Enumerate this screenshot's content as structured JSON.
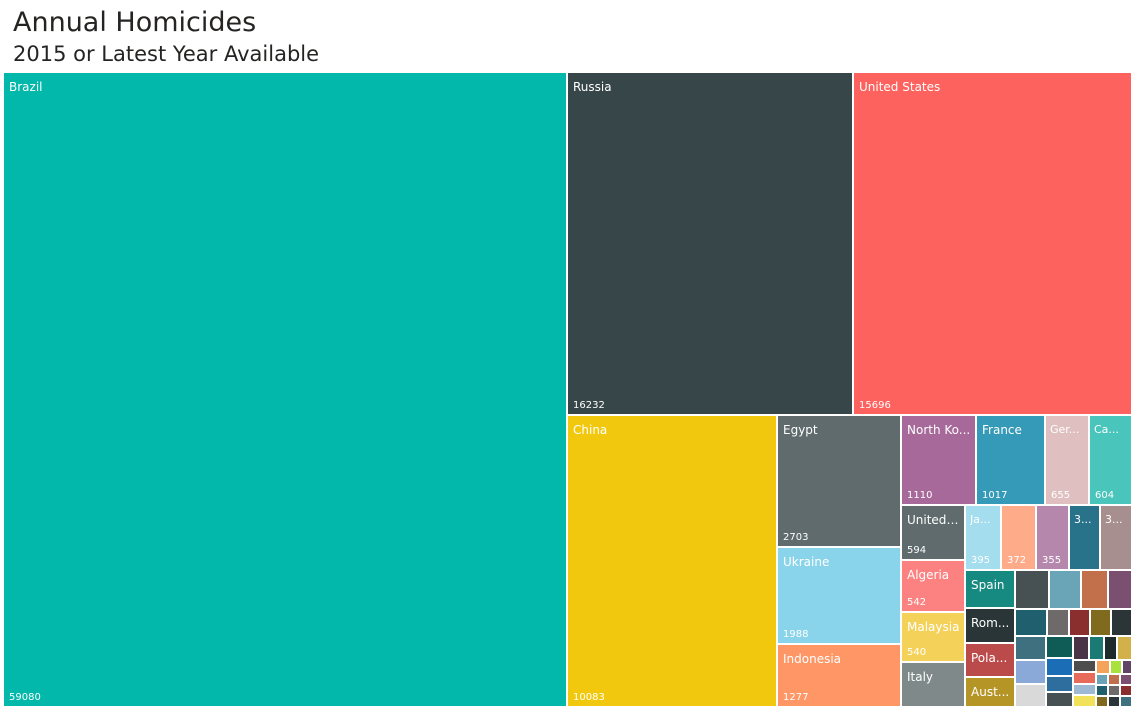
{
  "header": {
    "title": "Annual Homicides",
    "subtitle": "2015 or Latest Year Available"
  },
  "chart_data": {
    "type": "treemap",
    "items": [
      {
        "name": "Brazil",
        "label": "Brazil",
        "value": 59080,
        "color": "#01B8AA"
      },
      {
        "name": "Russia",
        "label": "Russia",
        "value": 16232,
        "color": "#374649"
      },
      {
        "name": "United States",
        "label": "United States",
        "value": 15696,
        "color": "#FD625E"
      },
      {
        "name": "China",
        "label": "China",
        "value": 10083,
        "color": "#F2C80F"
      },
      {
        "name": "Egypt",
        "label": "Egypt",
        "value": 2703,
        "color": "#5F6B6D"
      },
      {
        "name": "Ukraine",
        "label": "Ukraine",
        "value": 1988,
        "color": "#8AD4EB"
      },
      {
        "name": "Indonesia",
        "label": "Indonesia",
        "value": 1277,
        "color": "#FE9666"
      },
      {
        "name": "North Korea",
        "label": "North Ko...",
        "value": 1110,
        "color": "#A66999"
      },
      {
        "name": "France",
        "label": "France",
        "value": 1017,
        "color": "#3599B8"
      },
      {
        "name": "Germany",
        "label": "Ger...",
        "value": 655,
        "color": "#DFBFBF"
      },
      {
        "name": "Canada",
        "label": "Ca...",
        "value": 604,
        "color": "#4AC5BB"
      },
      {
        "name": "United Kingdom",
        "label": "United ...",
        "value": 594,
        "color": "#5F6B6D"
      },
      {
        "name": "Algeria",
        "label": "Algeria",
        "value": 542,
        "color": "#FB8281"
      },
      {
        "name": "Malaysia",
        "label": "Malaysia",
        "value": 540,
        "color": "#F4D25A"
      },
      {
        "name": "Italy",
        "label": "Italy",
        "value": null,
        "color": "#7F898A"
      },
      {
        "name": "Japan",
        "label": "Ja...",
        "value": 395,
        "color": "#A4DDEE"
      },
      {
        "name": "",
        "label": "",
        "value": 372,
        "color": "#FDAB89"
      },
      {
        "name": "",
        "label": "",
        "value": 355,
        "color": "#B687AC"
      },
      {
        "name": "",
        "label": "3...",
        "value": null,
        "color": "#28738A"
      },
      {
        "name": "",
        "label": "3...",
        "value": null,
        "color": "#A78F8F"
      },
      {
        "name": "Spain",
        "label": "Spain",
        "value": null,
        "color": "#168980"
      },
      {
        "name": "Romania",
        "label": "Rom...",
        "value": null,
        "color": "#293537"
      },
      {
        "name": "Poland",
        "label": "Pola...",
        "value": null,
        "color": "#BB4A4A"
      },
      {
        "name": "Australia",
        "label": "Aust...",
        "value": null,
        "color": "#B59525"
      }
    ],
    "others_colors": [
      "#475052",
      "#6AA4B7",
      "#C26F4C",
      "#7A4F70",
      "#1F5F6E",
      "#6E6A6A",
      "#8A2E2E",
      "#7F6A1E",
      "#2B3436",
      "#3F7080",
      "#0E5C55",
      "#4A3346",
      "#1C7A75",
      "#1E2A2C",
      "#D2B14B",
      "#8AA8D8",
      "#1B6EB5",
      "#4D4D4D",
      "#F5A35A",
      "#A9E23F",
      "#5F4468",
      "#D9D9D9",
      "#2E6E9E",
      "#E86A5A",
      "#9EB9D4",
      "#F2E25A"
    ]
  }
}
